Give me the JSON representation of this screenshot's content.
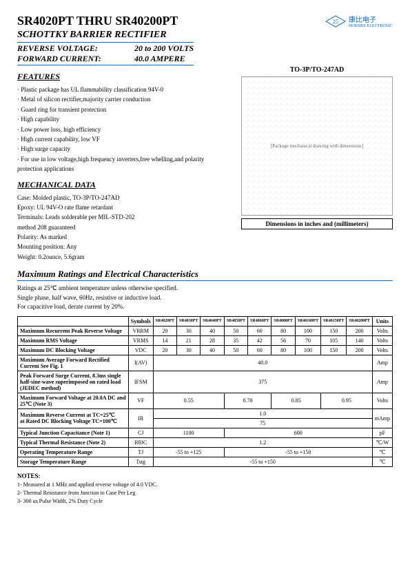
{
  "header": {
    "title": "SR4020PT THRU SR40200PT",
    "subtitle": "SCHOTTKY BARRIER RECTIFIER",
    "spec1_label": "REVERSE VOLTAGE:",
    "spec1_value": "20 to 200 VOLTS",
    "spec2_label": "FORWARD CURRENT:",
    "spec2_value": "40.0 AMPERE",
    "company": "康比电子",
    "company_en": "HORNBY ELECTRONIC"
  },
  "features": {
    "title": "FEATURES",
    "items": [
      "Plastic package has UL flammability classification 94V-0",
      "Metal of silicon rectifier,majority carrier conduction",
      "Guard ring for transient protection",
      "High capability",
      "Low power loss, high efficiency",
      "High current capability, low VF",
      "High surge capacity",
      "For use in low voltage,high frequency inverters,free whelling,and polarity protection applications"
    ]
  },
  "package": {
    "label": "TO-3P/TO-247AD",
    "caption": "Dimensions in inches and (millimeters)",
    "drawing_placeholder": "[Package mechanical drawing with dimensions]"
  },
  "mechanical": {
    "title": "MECHANICAL DATA",
    "lines": [
      "Case: Molded plastic, TO-3P/TO-247AD",
      "Epoxy: UL 94V-O rate flame retardant",
      "Terminals: Leads solderable per MIL-STD-202",
      "method 208 guaranteed",
      "Polarity: As marked",
      "Mounting position: Any",
      "Weight: 0.2ounce, 5.6gram"
    ]
  },
  "ratings": {
    "title": "Maximum Ratings and Electrical Characteristics",
    "intro": [
      "Ratings at 25℃ ambient temperature unless otherwise specified.",
      "Single phase, half wave, 60Hz, resistive or inductive load.",
      "For capacitive load, derate current by 20%."
    ],
    "columns": [
      "",
      "Symbols",
      "SR4020PT",
      "SR4030PT",
      "SR4040PT",
      "SR4050PT",
      "SR4060PT",
      "SR4080PT",
      "SR40100PT",
      "SR40150PT",
      "SR40200PT",
      "Units"
    ],
    "rows": [
      {
        "param": "Maximum Recurrent Peak Reverse Voltage",
        "symbol": "VRRM",
        "cells": [
          "20",
          "30",
          "40",
          "50",
          "60",
          "80",
          "100",
          "150",
          "200"
        ],
        "unit": "Volts"
      },
      {
        "param": "Maximum RMS Voltage",
        "symbol": "VRMS",
        "cells": [
          "14",
          "21",
          "28",
          "35",
          "42",
          "56",
          "70",
          "105",
          "140"
        ],
        "unit": "Volts"
      },
      {
        "param": "Maximum DC Blocking Voltage",
        "symbol": "VDC",
        "cells": [
          "20",
          "30",
          "40",
          "50",
          "60",
          "80",
          "100",
          "150",
          "200"
        ],
        "unit": "Volts"
      },
      {
        "param": "Maximum Average Forward Rectified Current See Fig. 1",
        "symbol": "I(AV)",
        "span": "40.0",
        "unit": "Amp"
      },
      {
        "param": "Peak Forward Surge Current, 8.3ms single half-sine-wave superimposed on rated load (JEDEC method)",
        "symbol": "IFSM",
        "span": "375",
        "unit": "Amp"
      },
      {
        "param": "Maximum Forward Voltage at 20.0A DC and 25℃ (Note 3)",
        "symbol": "VF",
        "groups": [
          "0.55",
          "0.70",
          "0.85",
          "0.95"
        ],
        "group_spans": [
          3,
          2,
          2,
          2
        ],
        "unit": "Volts"
      },
      {
        "param": "Maximum Reverse Current    at TC=25℃\nat Rated DC Blocking Voltage    TC=100℃",
        "symbol": "IR",
        "span2": [
          "1.0",
          "75"
        ],
        "unit": "mAmp"
      },
      {
        "param": "Typical Junction Capacitance (Note 1)",
        "symbol": "CJ",
        "groups": [
          "1100",
          "600"
        ],
        "group_spans": [
          3,
          6
        ],
        "unit": "pF"
      },
      {
        "param": "Typical Thermal Resistance (Note 2)",
        "symbol": "RθJC",
        "span": "1.2",
        "unit": "℃/W"
      },
      {
        "param": "Operating Temperature Range",
        "symbol": "TJ",
        "groups": [
          "-55 to +125",
          "-55 to +150"
        ],
        "group_spans": [
          3,
          6
        ],
        "unit": "℃"
      },
      {
        "param": "Storage Temperature Range",
        "symbol": "Tstg",
        "span": "-55 to +150",
        "unit": "℃"
      }
    ]
  },
  "notes": {
    "title": "NOTES:",
    "items": [
      "1- Measured at 1 MHz and applied reverse voltage of 4.0 VDC.",
      "2- Thermal Resistance from Junction to Case Per Leg",
      "3- 300 us Pulse Width, 2% Duty Cycle"
    ]
  }
}
